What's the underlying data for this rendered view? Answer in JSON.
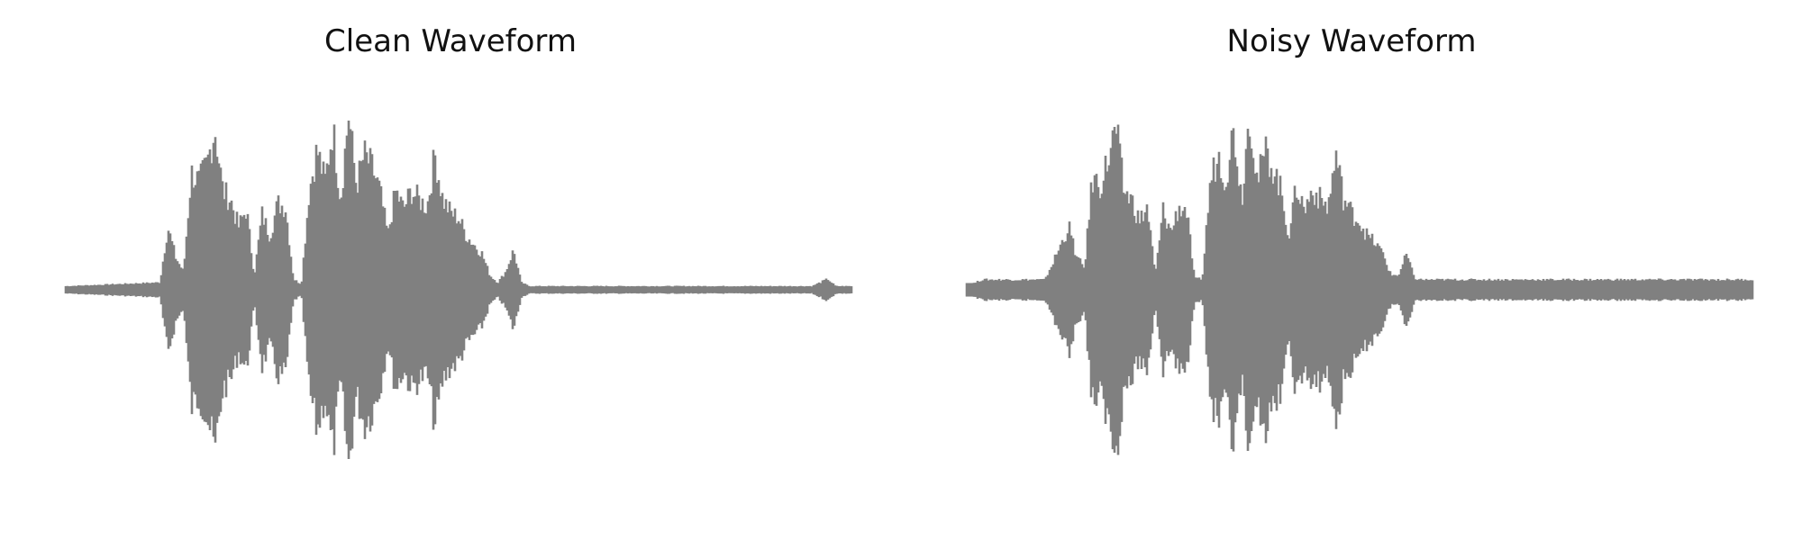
{
  "chart_data": [
    {
      "type": "area",
      "title": "Clean Waveform",
      "axes": "off",
      "grid": false,
      "color": "#808080",
      "noise_floor": 0.02,
      "envelope": {
        "t": [
          0.0,
          0.12,
          0.13,
          0.14,
          0.15,
          0.16,
          0.17,
          0.18,
          0.19,
          0.2,
          0.21,
          0.22,
          0.23,
          0.24,
          0.25,
          0.26,
          0.27,
          0.28,
          0.29,
          0.3,
          0.31,
          0.32,
          0.33,
          0.34,
          0.35,
          0.36,
          0.37,
          0.38,
          0.39,
          0.4,
          0.41,
          0.42,
          0.43,
          0.44,
          0.45,
          0.46,
          0.47,
          0.48,
          0.49,
          0.5,
          0.51,
          0.52,
          0.53,
          0.54,
          0.55,
          0.56,
          0.57,
          0.58,
          0.59,
          0.6,
          0.61,
          0.62,
          0.63,
          0.64,
          0.65,
          0.66,
          0.67,
          0.68,
          0.69,
          0.7,
          0.71,
          0.72,
          0.73,
          0.74,
          0.75,
          0.76,
          0.77,
          0.78,
          0.79,
          0.8,
          0.85,
          0.9,
          0.95,
          0.97,
          0.98,
          1.0
        ],
        "amp": [
          0.02,
          0.04,
          0.35,
          0.18,
          0.1,
          0.65,
          0.6,
          0.7,
          0.9,
          0.55,
          0.5,
          0.35,
          0.45,
          0.08,
          0.42,
          0.3,
          0.48,
          0.46,
          0.06,
          0.03,
          0.55,
          0.78,
          0.6,
          0.9,
          0.5,
          0.98,
          0.58,
          0.75,
          0.68,
          0.55,
          0.3,
          0.55,
          0.45,
          0.55,
          0.5,
          0.46,
          0.75,
          0.5,
          0.43,
          0.4,
          0.3,
          0.25,
          0.2,
          0.08,
          0.04,
          0.1,
          0.22,
          0.04,
          0.02,
          0.02,
          0.02,
          0.02,
          0.02,
          0.02,
          0.02,
          0.02,
          0.02,
          0.02,
          0.02,
          0.02,
          0.02,
          0.02,
          0.02,
          0.02,
          0.02,
          0.02,
          0.02,
          0.02,
          0.02,
          0.02,
          0.02,
          0.02,
          0.02,
          0.06,
          0.02,
          0.02
        ]
      }
    },
    {
      "type": "area",
      "title": "Noisy Waveform",
      "axes": "off",
      "grid": false,
      "color": "#808080",
      "noise_floor": 0.055,
      "envelope": {
        "t": [
          0.0,
          0.02,
          0.1,
          0.13,
          0.14,
          0.15,
          0.16,
          0.17,
          0.18,
          0.19,
          0.2,
          0.21,
          0.22,
          0.23,
          0.24,
          0.25,
          0.26,
          0.27,
          0.28,
          0.29,
          0.3,
          0.31,
          0.32,
          0.33,
          0.34,
          0.35,
          0.36,
          0.37,
          0.38,
          0.39,
          0.4,
          0.41,
          0.42,
          0.43,
          0.44,
          0.45,
          0.46,
          0.47,
          0.48,
          0.49,
          0.5,
          0.51,
          0.52,
          0.53,
          0.54,
          0.55,
          0.56,
          0.57,
          0.58,
          0.6,
          0.7,
          0.8,
          0.9,
          0.97,
          1.0
        ],
        "amp": [
          0.02,
          0.055,
          0.055,
          0.35,
          0.18,
          0.12,
          0.62,
          0.58,
          0.72,
          0.9,
          0.55,
          0.5,
          0.38,
          0.46,
          0.08,
          0.44,
          0.32,
          0.46,
          0.44,
          0.06,
          0.06,
          0.6,
          0.75,
          0.62,
          0.9,
          0.5,
          1.0,
          0.6,
          0.77,
          0.68,
          0.55,
          0.3,
          0.58,
          0.44,
          0.56,
          0.5,
          0.46,
          0.75,
          0.5,
          0.43,
          0.38,
          0.3,
          0.26,
          0.2,
          0.08,
          0.08,
          0.2,
          0.06,
          0.055,
          0.055,
          0.055,
          0.055,
          0.055,
          0.055,
          0.055
        ]
      }
    }
  ]
}
